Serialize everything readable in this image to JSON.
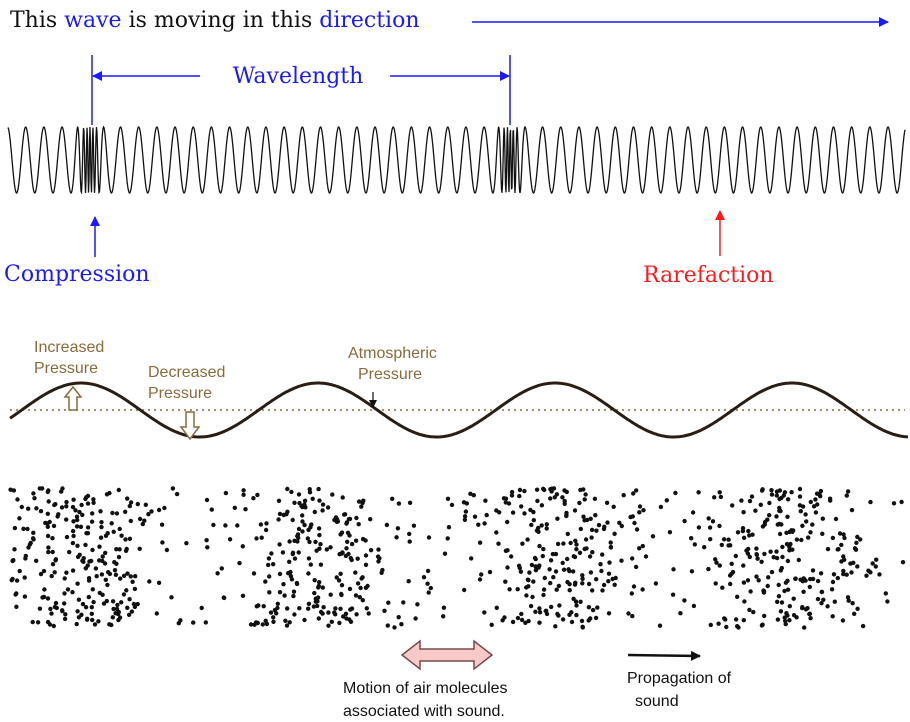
{
  "top": {
    "headline": {
      "part1": "This ",
      "part2": "wave",
      "part3": " is moving in this ",
      "part4": "direction"
    },
    "wavelength_label": "Wavelength",
    "compression_label": "Compression",
    "rarefaction_label": "Rarefaction"
  },
  "bottom": {
    "increased_pressure_line1": "Increased",
    "increased_pressure_line2": "Pressure",
    "decreased_pressure_line1": "Decreased",
    "decreased_pressure_line2": "Pressure",
    "atmospheric_pressure_line1": "Atmospheric",
    "atmospheric_pressure_line2": "Pressure",
    "motion_caption_line1": "Motion of air molecules",
    "motion_caption_line2": "associated with sound.",
    "propagation_caption_line1": "Propagation of",
    "propagation_caption_line2": "sound"
  },
  "colors": {
    "blue": "#1a1aff",
    "red": "#ff1a1a",
    "black": "#111111",
    "brown": "#8a6a3a",
    "wave_dark": "#2a1e14",
    "pink_fill": "#f7c9c9",
    "pink_stroke": "#7a4a4a"
  }
}
